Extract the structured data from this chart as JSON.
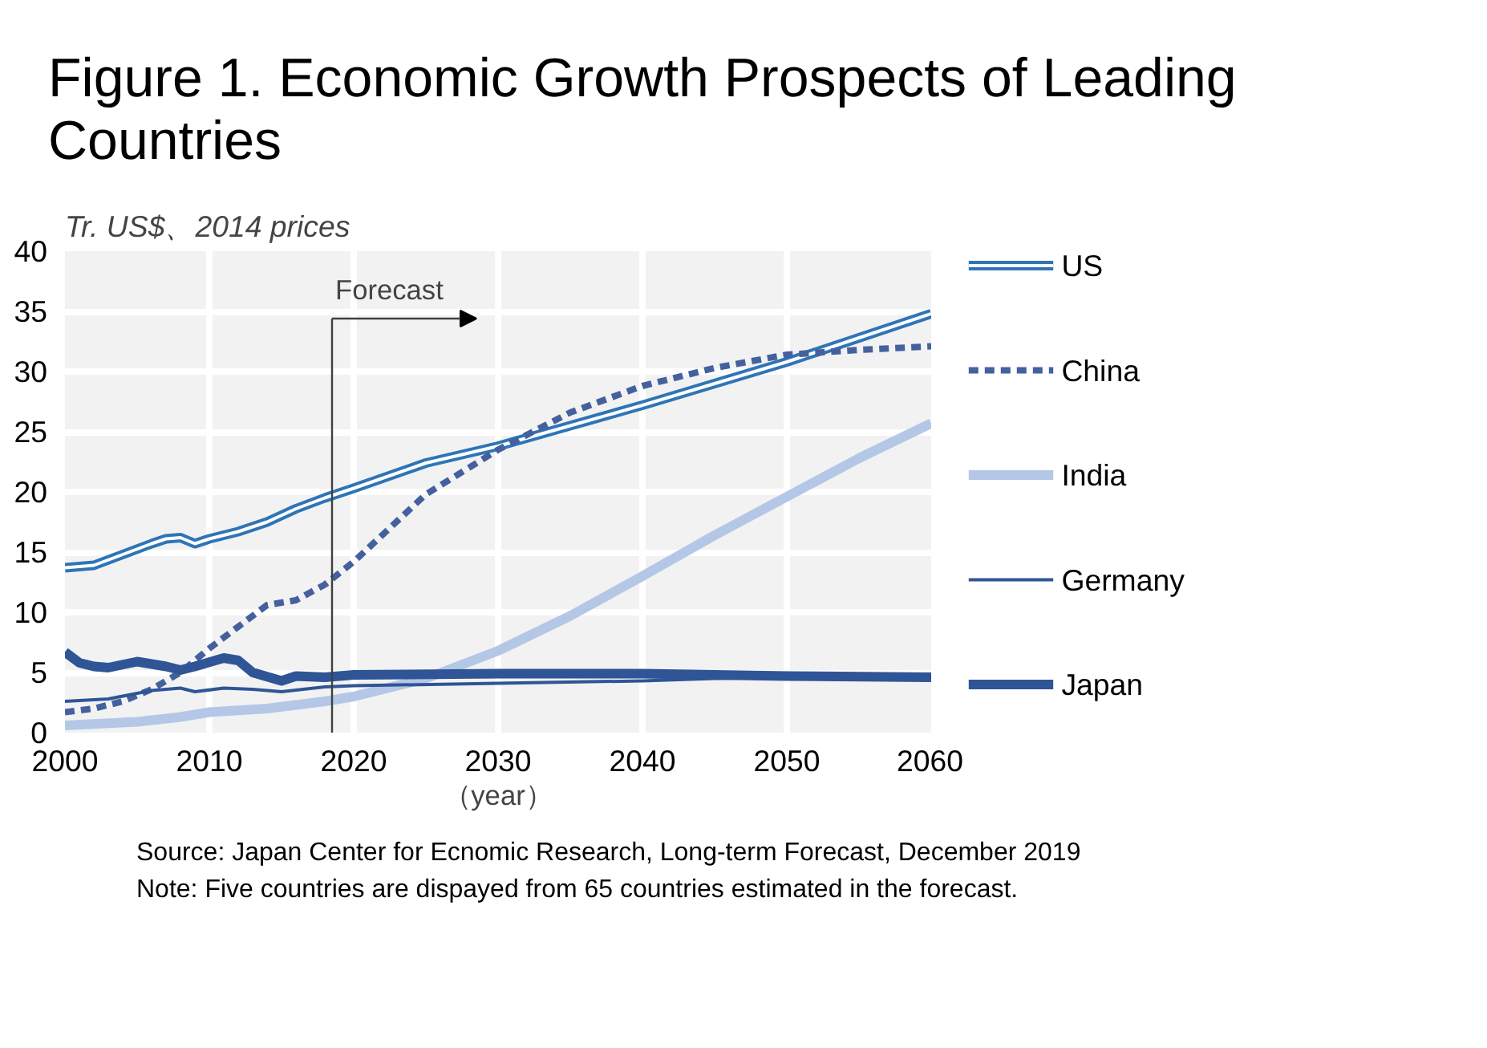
{
  "chart_data": {
    "type": "line",
    "title": "Figure 1. Economic Growth Prospects of Leading\nCountries",
    "ylabel": "Tr. US$、2014 prices",
    "xlabel": "（year）",
    "xlim": [
      2000,
      2060
    ],
    "ylim": [
      0,
      40
    ],
    "xticks": [
      2000,
      2010,
      2020,
      2030,
      2040,
      2050,
      2060
    ],
    "yticks": [
      0,
      5,
      10,
      15,
      20,
      25,
      30,
      35,
      40
    ],
    "grid": true,
    "legend": "right",
    "line_style": "solid",
    "series": [
      {
        "name": "US",
        "color": "#2e75b6",
        "x": [
          2000,
          2002,
          2004,
          2006,
          2007,
          2008,
          2009,
          2010,
          2012,
          2014,
          2016,
          2018,
          2020,
          2025,
          2030,
          2035,
          2040,
          2045,
          2050,
          2055,
          2060
        ],
        "values": [
          13.7,
          13.9,
          14.8,
          15.7,
          16.1,
          16.2,
          15.7,
          16.1,
          16.7,
          17.5,
          18.6,
          19.5,
          20.3,
          22.4,
          23.8,
          25.5,
          27.2,
          29.0,
          30.8,
          32.8,
          34.8
        ]
      },
      {
        "name": "China",
        "color": "#44619e",
        "line_style": "dashed",
        "x": [
          2000,
          2002,
          2004,
          2006,
          2008,
          2010,
          2012,
          2014,
          2016,
          2018,
          2020,
          2025,
          2030,
          2035,
          2040,
          2045,
          2050,
          2055,
          2060
        ],
        "values": [
          1.7,
          2.0,
          2.6,
          3.6,
          5.0,
          7.0,
          8.8,
          10.6,
          11.0,
          12.3,
          14.2,
          19.8,
          23.5,
          26.6,
          28.8,
          30.3,
          31.4,
          31.8,
          32.1
        ]
      },
      {
        "name": "India",
        "color": "#b4c7e7",
        "x": [
          2000,
          2005,
          2008,
          2010,
          2014,
          2018,
          2020,
          2025,
          2030,
          2035,
          2040,
          2045,
          2050,
          2055,
          2060
        ],
        "values": [
          0.6,
          0.9,
          1.3,
          1.7,
          2.0,
          2.6,
          3.0,
          4.5,
          6.8,
          9.7,
          13.0,
          16.4,
          19.6,
          22.8,
          25.7
        ]
      },
      {
        "name": "Germany",
        "color": "#2f5597",
        "x": [
          2000,
          2003,
          2006,
          2008,
          2009,
          2011,
          2013,
          2015,
          2018,
          2020,
          2030,
          2040,
          2045,
          2050,
          2060
        ],
        "values": [
          2.6,
          2.8,
          3.5,
          3.7,
          3.4,
          3.7,
          3.6,
          3.4,
          3.8,
          3.9,
          4.1,
          4.3,
          4.5,
          4.6,
          4.6
        ]
      },
      {
        "name": "Japan",
        "color": "#2f5597",
        "x": [
          2000,
          2001,
          2002,
          2003,
          2005,
          2007,
          2008,
          2009,
          2011,
          2012,
          2013,
          2015,
          2016,
          2018,
          2020,
          2030,
          2040,
          2045,
          2050,
          2060
        ],
        "values": [
          6.7,
          5.8,
          5.5,
          5.4,
          5.9,
          5.5,
          5.2,
          5.5,
          6.2,
          6.0,
          5.0,
          4.3,
          4.7,
          4.6,
          4.8,
          4.9,
          4.9,
          4.8,
          4.7,
          4.6
        ]
      }
    ],
    "ref_lines": [
      {
        "axis": "x",
        "value": 2018.5,
        "label": "Forecast",
        "color": "#404040"
      }
    ],
    "annotations": [
      "Source: Japan Center for Ecnomic Research, Long-term Forecast, December 2019",
      "Note: Five countries are dispayed from 65 countries estimated in the forecast."
    ]
  }
}
